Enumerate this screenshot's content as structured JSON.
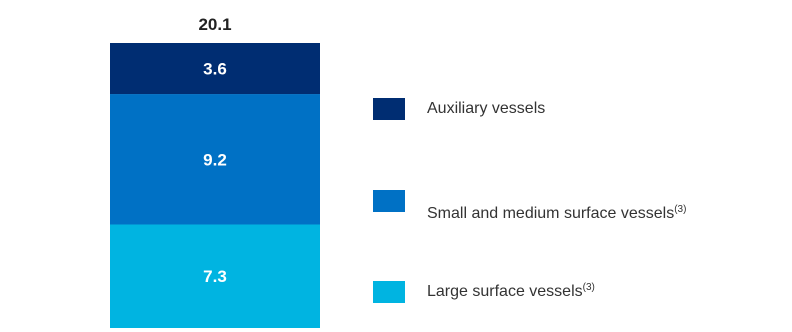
{
  "chart_data": {
    "type": "bar",
    "stacked": true,
    "categories": [
      ""
    ],
    "total_label": "20.1",
    "series": [
      {
        "name": "Large surface vessels",
        "note": "(3)",
        "values": [
          7.3
        ],
        "color": "#00b4e1"
      },
      {
        "name": "Small and medium surface vessels",
        "note": "(3)",
        "values": [
          9.2
        ],
        "color": "#0071c5"
      },
      {
        "name": "Auxiliary vessels",
        "note": "",
        "values": [
          3.6
        ],
        "color": "#002d72"
      }
    ],
    "legend_order": [
      2,
      1,
      0
    ],
    "legend_position": "right",
    "grid": false,
    "ylim": [
      0,
      20.1
    ]
  }
}
